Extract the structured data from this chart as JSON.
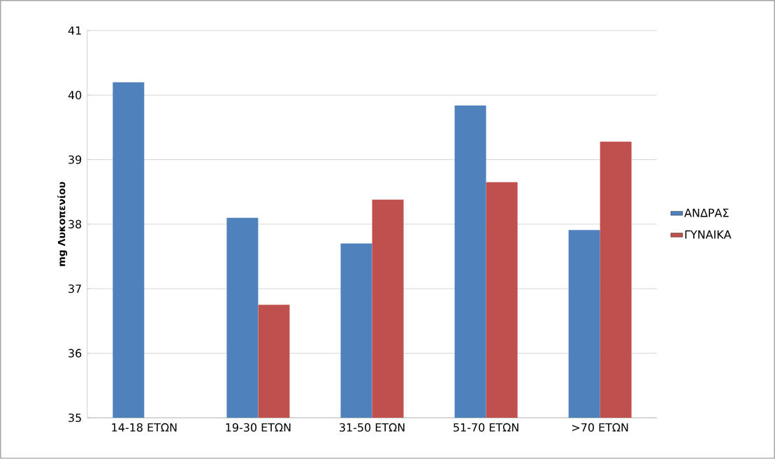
{
  "chart_data": {
    "type": "bar",
    "ylabel": "mg Λυκοπενίου",
    "categories": [
      "14-18 ΕΤΩΝ",
      "19-30 ΕΤΩΝ",
      "31-50 ΕΤΩΝ",
      "51-70  ΕΤΩΝ",
      ">70 ΕΤΩΝ"
    ],
    "series": [
      {
        "name": "ΑΝΔΡΑΣ",
        "color": "#4f81bd",
        "values": [
          40.2,
          38.1,
          37.7,
          39.84,
          37.91
        ]
      },
      {
        "name": "ΓΥΝΑΙΚΑ",
        "color": "#c0504d",
        "values": [
          null,
          36.75,
          38.38,
          38.65,
          39.28
        ]
      }
    ],
    "ylim": [
      35,
      41
    ],
    "yticks": [
      35,
      36,
      37,
      38,
      39,
      40,
      41
    ],
    "grid": "y",
    "legend": "right"
  }
}
